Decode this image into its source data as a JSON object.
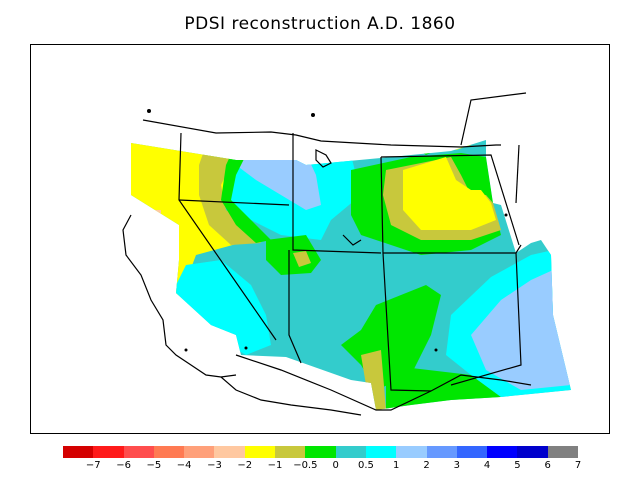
{
  "title": "PDSI reconstruction A.D. 1860",
  "colorbar": {
    "colors": [
      "#d40000",
      "#ff1a1a",
      "#ff4d4d",
      "#ff7a52",
      "#ffa07a",
      "#ffc8a0",
      "#ffff00",
      "#c8c83c",
      "#00e600",
      "#33cccc",
      "#00ffff",
      "#99ccff",
      "#6699ff",
      "#3366ff",
      "#0000ff",
      "#0000cc",
      "#808080"
    ],
    "ticks": [
      "−7",
      "−6",
      "−5",
      "−4",
      "−3",
      "−2",
      "−1",
      "−0.5",
      "0",
      "0.5",
      "1",
      "2",
      "3",
      "4",
      "5",
      "6",
      "7"
    ]
  },
  "palette": {
    "dry_light": "#ffc8a0",
    "dry": "#ffff00",
    "olive": "#c8c83c",
    "green": "#00e600",
    "teal": "#33cccc",
    "cyan": "#00ffff",
    "light_blue": "#99ccff"
  }
}
